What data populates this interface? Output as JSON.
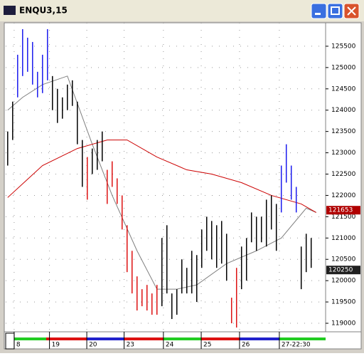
{
  "window": {
    "title": "ENQU3,15"
  },
  "chart_data": {
    "type": "ohlc",
    "x": [
      0,
      1,
      2,
      3,
      4,
      5,
      6,
      7,
      8,
      9,
      10,
      11,
      12,
      13,
      14,
      15,
      16,
      17,
      18,
      19,
      20,
      21,
      22,
      23,
      24,
      25,
      26,
      27,
      28,
      29,
      30,
      31,
      32,
      33,
      34,
      35,
      36,
      37,
      38,
      39,
      40,
      41,
      42,
      43,
      44,
      45,
      46,
      47,
      48,
      49,
      50,
      51,
      52,
      53,
      54,
      55,
      56,
      57,
      58,
      59,
      60,
      61
    ],
    "high": [
      123500,
      124200,
      125300,
      125900,
      125700,
      125600,
      124900,
      125300,
      125900,
      124800,
      124500,
      124300,
      124600,
      124700,
      124200,
      123300,
      122900,
      123100,
      123300,
      123500,
      122600,
      122800,
      122400,
      122000,
      121300,
      120700,
      120100,
      119800,
      119900,
      119700,
      119900,
      121000,
      121300,
      119700,
      119800,
      120500,
      120300,
      120700,
      120600,
      121200,
      121500,
      121400,
      121300,
      121400,
      121100,
      119600,
      120300,
      120800,
      121000,
      121600,
      121500,
      121500,
      121900,
      122000,
      121800,
      122700,
      123200,
      122700,
      122200,
      120800,
      121100,
      121000
    ],
    "low": [
      122700,
      123300,
      124300,
      124800,
      124900,
      124600,
      124300,
      124400,
      124700,
      124000,
      123700,
      123800,
      124000,
      124100,
      123200,
      122200,
      121900,
      122500,
      122600,
      122800,
      121800,
      122200,
      121800,
      121200,
      120200,
      119700,
      119300,
      119400,
      119300,
      119200,
      119200,
      119400,
      119700,
      119100,
      119200,
      119700,
      119700,
      119700,
      119500,
      120300,
      120700,
      120500,
      120300,
      120400,
      120000,
      119000,
      118900,
      119800,
      120000,
      120900,
      120700,
      120900,
      120800,
      121200,
      120700,
      121600,
      122300,
      121900,
      121600,
      119800,
      120200,
      120300
    ],
    "bar_colors": [
      "#000000",
      "#000000",
      "#1a1aee",
      "#1a1aee",
      "#1a1aee",
      "#1a1aee",
      "#1a1aee",
      "#1a1aee",
      "#1a1aee",
      "#000000",
      "#000000",
      "#000000",
      "#000000",
      "#000000",
      "#000000",
      "#000000",
      "#dd1111",
      "#000000",
      "#000000",
      "#000000",
      "#dd1111",
      "#dd1111",
      "#dd1111",
      "#dd1111",
      "#dd1111",
      "#dd1111",
      "#dd1111",
      "#dd1111",
      "#dd1111",
      "#dd1111",
      "#dd1111",
      "#000000",
      "#000000",
      "#000000",
      "#000000",
      "#000000",
      "#000000",
      "#000000",
      "#000000",
      "#000000",
      "#000000",
      "#000000",
      "#000000",
      "#000000",
      "#000000",
      "#dd1111",
      "#dd1111",
      "#000000",
      "#000000",
      "#000000",
      "#000000",
      "#000000",
      "#000000",
      "#000000",
      "#000000",
      "#1a1aee",
      "#1a1aee",
      "#1a1aee",
      "#1a1aee",
      "#000000",
      "#000000",
      "#000000"
    ],
    "lines": [
      {
        "color": "#808080",
        "x": [
          0,
          3,
          7,
          12,
          17,
          21,
          26,
          30,
          34,
          38,
          44,
          50,
          55,
          60,
          62
        ],
        "values": [
          124000,
          124300,
          124600,
          124800,
          123200,
          122000,
          120700,
          119800,
          119800,
          119900,
          120400,
          120700,
          121000,
          121700,
          121600
        ]
      },
      {
        "color": "#cc0000",
        "x": [
          0,
          7,
          14,
          20,
          24,
          30,
          36,
          41,
          47,
          53,
          59,
          62
        ],
        "values": [
          121950,
          122700,
          123100,
          123300,
          123300,
          122900,
          122600,
          122500,
          122300,
          122000,
          121800,
          121600
        ]
      }
    ],
    "price_markers": [
      {
        "value": 121653,
        "color": "#b00000"
      },
      {
        "value": 120250,
        "color": "#202020"
      }
    ],
    "xlim": [
      -0.4,
      63.9
    ],
    "ylim": [
      118800,
      126050
    ],
    "yticks": [
      119000,
      119500,
      120000,
      120500,
      121000,
      121500,
      122000,
      122500,
      123000,
      123500,
      124000,
      124500,
      125000,
      125500
    ],
    "xticks": [
      {
        "value": 1.3,
        "label": "8"
      },
      {
        "value": 8.4,
        "label": "19"
      },
      {
        "value": 15.9,
        "label": "20"
      },
      {
        "value": 23.4,
        "label": "23"
      },
      {
        "value": 31.3,
        "label": "24"
      },
      {
        "value": 38.9,
        "label": "25"
      },
      {
        "value": 46.6,
        "label": "26"
      },
      {
        "value": 54.6,
        "label": "27-22:30"
      }
    ],
    "grid": true
  }
}
